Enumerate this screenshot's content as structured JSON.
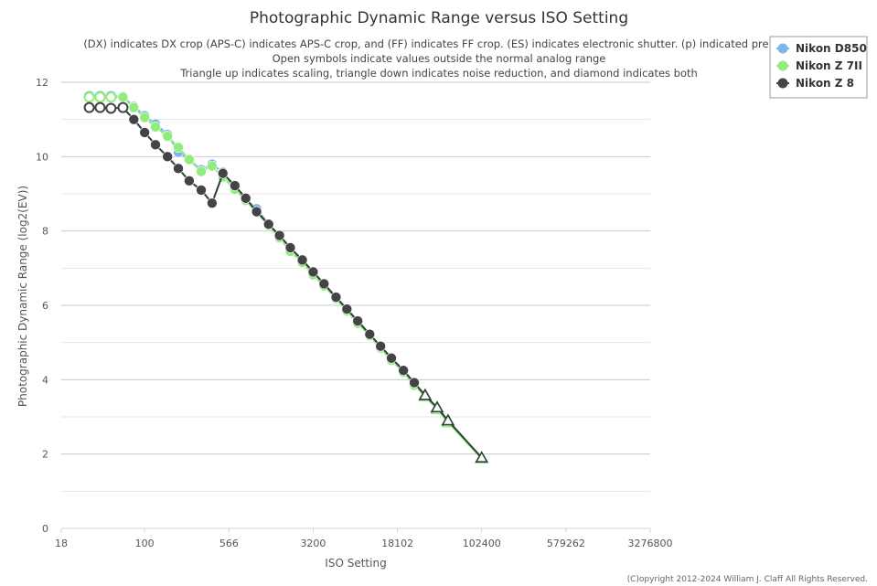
{
  "chart_data": {
    "type": "line",
    "title": "Photographic Dynamic Range versus ISO Setting",
    "subtitle": [
      "(DX) indicates DX crop (APS-C) indicates APS-C crop, and (FF) indicates FF crop. (ES) indicates electronic shutter. (p) indicated prelimin",
      "Open symbols indicate values outside the normal analog range",
      "Triangle up indicates scaling, triangle down indicates noise reduction, and diamond indicates both"
    ],
    "xlabel": "ISO Setting",
    "ylabel": "Photographic Dynamic Range (log2(EV))",
    "x_scale": "log",
    "xlim": [
      18,
      3276800
    ],
    "ylim": [
      0,
      12
    ],
    "x_ticks": [
      "18",
      "100",
      "566",
      "3200",
      "18102",
      "102400",
      "579262",
      "3276800"
    ],
    "y_ticks": [
      "0",
      "2",
      "4",
      "6",
      "8",
      "10",
      "12"
    ],
    "grid": true,
    "legend_position": "top-right",
    "series": [
      {
        "name": "Nikon D850",
        "color": "#7cb5ec",
        "points": [
          {
            "x": 32,
            "y": 11.62,
            "marker": "open-circle"
          },
          {
            "x": 40,
            "y": 11.62,
            "marker": "open-circle"
          },
          {
            "x": 50,
            "y": 11.62,
            "marker": "open-circle"
          },
          {
            "x": 64,
            "y": 11.62,
            "marker": "circle"
          },
          {
            "x": 80,
            "y": 11.35,
            "marker": "circle"
          },
          {
            "x": 100,
            "y": 11.1,
            "marker": "circle"
          },
          {
            "x": 125,
            "y": 10.88,
            "marker": "circle"
          },
          {
            "x": 160,
            "y": 10.6,
            "marker": "circle"
          },
          {
            "x": 200,
            "y": 10.12,
            "marker": "circle"
          },
          {
            "x": 250,
            "y": 9.92,
            "marker": "circle"
          },
          {
            "x": 320,
            "y": 9.65,
            "marker": "circle"
          },
          {
            "x": 400,
            "y": 9.8,
            "marker": "circle"
          },
          {
            "x": 500,
            "y": 9.58,
            "marker": "circle"
          },
          {
            "x": 640,
            "y": 9.15,
            "marker": "circle"
          },
          {
            "x": 800,
            "y": 8.85,
            "marker": "circle"
          },
          {
            "x": 1000,
            "y": 8.6,
            "marker": "circle"
          },
          {
            "x": 1280,
            "y": 8.18,
            "marker": "circle"
          },
          {
            "x": 1600,
            "y": 7.85,
            "marker": "circle"
          },
          {
            "x": 2000,
            "y": 7.5,
            "marker": "circle"
          },
          {
            "x": 2560,
            "y": 7.2,
            "marker": "circle"
          },
          {
            "x": 3200,
            "y": 6.85,
            "marker": "circle"
          },
          {
            "x": 4000,
            "y": 6.55,
            "marker": "circle"
          },
          {
            "x": 5120,
            "y": 6.2,
            "marker": "circle"
          },
          {
            "x": 6400,
            "y": 5.88,
            "marker": "circle"
          },
          {
            "x": 8000,
            "y": 5.55,
            "marker": "circle"
          },
          {
            "x": 10240,
            "y": 5.2,
            "marker": "circle"
          },
          {
            "x": 12800,
            "y": 4.88,
            "marker": "circle"
          },
          {
            "x": 16000,
            "y": 4.55,
            "marker": "circle"
          },
          {
            "x": 20480,
            "y": 4.22,
            "marker": "circle"
          },
          {
            "x": 25600,
            "y": 3.88,
            "marker": "circle"
          },
          {
            "x": 32000,
            "y": 3.58,
            "marker": "triangle-up"
          },
          {
            "x": 40960,
            "y": 3.22,
            "marker": "triangle-up"
          },
          {
            "x": 51200,
            "y": 2.88,
            "marker": "triangle-up"
          },
          {
            "x": 102400,
            "y": 1.88,
            "marker": "triangle-up"
          }
        ]
      },
      {
        "name": "Nikon Z 7II",
        "color": "#90ed7d",
        "points": [
          {
            "x": 32,
            "y": 11.6,
            "marker": "open-circle"
          },
          {
            "x": 40,
            "y": 11.6,
            "marker": "open-circle"
          },
          {
            "x": 50,
            "y": 11.6,
            "marker": "open-circle"
          },
          {
            "x": 64,
            "y": 11.6,
            "marker": "circle"
          },
          {
            "x": 80,
            "y": 11.32,
            "marker": "circle"
          },
          {
            "x": 100,
            "y": 11.05,
            "marker": "circle"
          },
          {
            "x": 125,
            "y": 10.8,
            "marker": "circle"
          },
          {
            "x": 160,
            "y": 10.55,
            "marker": "circle"
          },
          {
            "x": 200,
            "y": 10.25,
            "marker": "circle"
          },
          {
            "x": 250,
            "y": 9.92,
            "marker": "circle"
          },
          {
            "x": 320,
            "y": 9.6,
            "marker": "circle"
          },
          {
            "x": 400,
            "y": 9.75,
            "marker": "circle"
          },
          {
            "x": 500,
            "y": 9.45,
            "marker": "circle"
          },
          {
            "x": 640,
            "y": 9.12,
            "marker": "circle"
          },
          {
            "x": 800,
            "y": 8.82,
            "marker": "circle"
          },
          {
            "x": 1000,
            "y": 8.5,
            "marker": "circle"
          },
          {
            "x": 1280,
            "y": 8.15,
            "marker": "circle"
          },
          {
            "x": 1600,
            "y": 7.82,
            "marker": "circle"
          },
          {
            "x": 2000,
            "y": 7.45,
            "marker": "circle"
          },
          {
            "x": 2560,
            "y": 7.15,
            "marker": "circle"
          },
          {
            "x": 3200,
            "y": 6.82,
            "marker": "circle"
          },
          {
            "x": 4000,
            "y": 6.52,
            "marker": "circle"
          },
          {
            "x": 5120,
            "y": 6.18,
            "marker": "circle"
          },
          {
            "x": 6400,
            "y": 5.85,
            "marker": "circle"
          },
          {
            "x": 8000,
            "y": 5.52,
            "marker": "circle"
          },
          {
            "x": 10240,
            "y": 5.18,
            "marker": "circle"
          },
          {
            "x": 12800,
            "y": 4.85,
            "marker": "circle"
          },
          {
            "x": 16000,
            "y": 4.52,
            "marker": "circle"
          },
          {
            "x": 20480,
            "y": 4.2,
            "marker": "circle"
          },
          {
            "x": 25600,
            "y": 3.85,
            "marker": "circle"
          },
          {
            "x": 32000,
            "y": 3.55,
            "marker": "triangle-up"
          },
          {
            "x": 40960,
            "y": 3.2,
            "marker": "triangle-up"
          },
          {
            "x": 51200,
            "y": 2.85,
            "marker": "triangle-up"
          },
          {
            "x": 102400,
            "y": 1.88,
            "marker": "triangle-up"
          }
        ]
      },
      {
        "name": "Nikon Z 8",
        "color": "#434348",
        "points": [
          {
            "x": 32,
            "y": 11.32,
            "marker": "open-circle"
          },
          {
            "x": 40,
            "y": 11.32,
            "marker": "open-circle"
          },
          {
            "x": 50,
            "y": 11.3,
            "marker": "open-circle"
          },
          {
            "x": 64,
            "y": 11.32,
            "marker": "open-circle"
          },
          {
            "x": 80,
            "y": 11.0,
            "marker": "circle"
          },
          {
            "x": 100,
            "y": 10.65,
            "marker": "circle"
          },
          {
            "x": 125,
            "y": 10.32,
            "marker": "circle"
          },
          {
            "x": 160,
            "y": 10.0,
            "marker": "circle"
          },
          {
            "x": 200,
            "y": 9.68,
            "marker": "circle"
          },
          {
            "x": 250,
            "y": 9.35,
            "marker": "circle"
          },
          {
            "x": 320,
            "y": 9.1,
            "marker": "circle"
          },
          {
            "x": 400,
            "y": 8.75,
            "marker": "circle"
          },
          {
            "x": 500,
            "y": 9.55,
            "marker": "circle"
          },
          {
            "x": 640,
            "y": 9.22,
            "marker": "circle"
          },
          {
            "x": 800,
            "y": 8.88,
            "marker": "circle"
          },
          {
            "x": 1000,
            "y": 8.52,
            "marker": "circle"
          },
          {
            "x": 1280,
            "y": 8.18,
            "marker": "circle"
          },
          {
            "x": 1600,
            "y": 7.88,
            "marker": "circle"
          },
          {
            "x": 2000,
            "y": 7.55,
            "marker": "circle"
          },
          {
            "x": 2560,
            "y": 7.22,
            "marker": "circle"
          },
          {
            "x": 3200,
            "y": 6.9,
            "marker": "circle"
          },
          {
            "x": 4000,
            "y": 6.58,
            "marker": "circle"
          },
          {
            "x": 5120,
            "y": 6.22,
            "marker": "circle"
          },
          {
            "x": 6400,
            "y": 5.9,
            "marker": "circle"
          },
          {
            "x": 8000,
            "y": 5.58,
            "marker": "circle"
          },
          {
            "x": 10240,
            "y": 5.22,
            "marker": "circle"
          },
          {
            "x": 12800,
            "y": 4.9,
            "marker": "circle"
          },
          {
            "x": 16000,
            "y": 4.58,
            "marker": "circle"
          },
          {
            "x": 20480,
            "y": 4.25,
            "marker": "circle"
          },
          {
            "x": 25600,
            "y": 3.92,
            "marker": "circle"
          },
          {
            "x": 32000,
            "y": 3.58,
            "marker": "triangle-up"
          },
          {
            "x": 40960,
            "y": 3.25,
            "marker": "triangle-up"
          },
          {
            "x": 51200,
            "y": 2.9,
            "marker": "triangle-up"
          },
          {
            "x": 102400,
            "y": 1.9,
            "marker": "triangle-up"
          }
        ]
      }
    ]
  },
  "credit": "(C)opyright 2012-2024 William J. Claff All Rights Reserved."
}
